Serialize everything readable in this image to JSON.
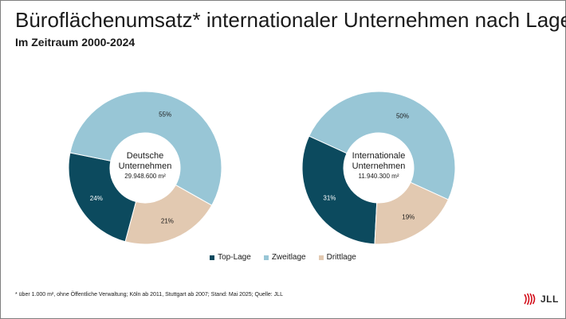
{
  "title": "Büroflächenumsatz* internationaler Unternehmen nach Lage",
  "subtitle": "Im Zeitraum 2000-2024",
  "footnote": "* über 1.000 m², ohne Öffentliche Verwaltung; Köln ab 2011, Stuttgart ab 2007; Stand: Mai 2025; Quelle: JLL",
  "logo_text": "JLL",
  "colors": {
    "top_lage": "#0c4a5e",
    "zweitlage": "#98c6d6",
    "drittlage": "#e2c9b1",
    "logo": "#d3101c"
  },
  "chart_data": [
    {
      "type": "pie",
      "donut": true,
      "center_label": [
        "Deutsche",
        "Unternehmen"
      ],
      "center_value": "29.948.600 m²",
      "categories": [
        "Top-Lage",
        "Zweitlage",
        "Drittlage"
      ],
      "values": [
        24,
        55,
        21
      ],
      "data_labels": [
        "24%",
        "55%",
        "21%"
      ]
    },
    {
      "type": "pie",
      "donut": true,
      "center_label": [
        "Internationale",
        "Unternehmen"
      ],
      "center_value": "11.940.300 m²",
      "categories": [
        "Top-Lage",
        "Zweitlage",
        "Drittlage"
      ],
      "values": [
        31,
        50,
        19
      ],
      "data_labels": [
        "31%",
        "50%",
        "19%"
      ]
    }
  ],
  "legend": [
    {
      "label": "Top-Lage",
      "color": "#0c4a5e"
    },
    {
      "label": "Zweitlage",
      "color": "#98c6d6"
    },
    {
      "label": "Drittlage",
      "color": "#e2c9b1"
    }
  ]
}
